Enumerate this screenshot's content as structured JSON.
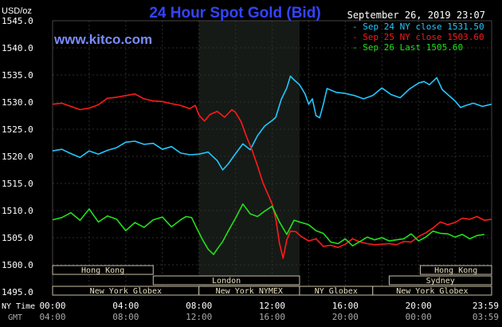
{
  "header": {
    "unit": "USD/oz",
    "title": "24 Hour Spot Gold (Bid)",
    "timestamp": "September 26, 2019 23:07",
    "watermark": "www.kitco.com"
  },
  "colors": {
    "background": "#000000",
    "plot_shade": "#161a16",
    "grid": "#2e2e2e",
    "title": "#3344ff",
    "watermark": "#7a8cff",
    "axis_text": "#ffffff",
    "session_box_fill": "#000000",
    "session_box_stroke": "#c8c0a8",
    "session_box_text": "#e8e0c0",
    "sep24": "#22c8ff",
    "sep25": "#ff1a1a",
    "sep26": "#22e01a"
  },
  "chart_data": {
    "type": "line",
    "title": "24 Hour Spot Gold (Bid)",
    "ylabel": "USD/oz",
    "xlabel_ny": "NY Time",
    "xlabel_gmt": "GMT",
    "ylim": [
      1495,
      1545
    ],
    "yticks": [
      "1495.0",
      "1500.0",
      "1505.0",
      "1510.0",
      "1515.0",
      "1520.0",
      "1525.0",
      "1530.0",
      "1535.0",
      "1540.0",
      "1545.0"
    ],
    "xlim": [
      0,
      24
    ],
    "x_ticks_ny": [
      "00:00",
      "04:00",
      "08:00",
      "12:00",
      "16:00",
      "20:00",
      "23:59"
    ],
    "x_ticks_gmt": [
      "04:00",
      "08:00",
      "12:00",
      "16:00",
      "20:00",
      "00:00",
      "03:59"
    ],
    "shaded_hours": [
      8,
      13.5
    ],
    "legend": [
      {
        "label": "Sep 24 NY close 1531.50",
        "color": "#22c8ff"
      },
      {
        "label": "Sep 25 NY close 1503.60",
        "color": "#ff1a1a"
      },
      {
        "label": "Sep 26 Last 1505.60",
        "color": "#22e01a"
      }
    ],
    "series": [
      {
        "name": "Sep 24",
        "color": "#22c8ff",
        "x": [
          0,
          0.5,
          1,
          1.5,
          2,
          2.5,
          3,
          3.5,
          4,
          4.5,
          5,
          5.5,
          6,
          6.5,
          7,
          7.5,
          8,
          8.5,
          9,
          9.3,
          9.6,
          10,
          10.4,
          10.8,
          11.2,
          11.6,
          12,
          12.2,
          12.5,
          12.8,
          13,
          13.2,
          13.5,
          13.8,
          14,
          14.2,
          14.4,
          14.6,
          14.8,
          15,
          15.5,
          16,
          16.5,
          17,
          17.5,
          18,
          18.5,
          19,
          19.5,
          20,
          20.3,
          20.6,
          21,
          21.3,
          21.6,
          22,
          22.3,
          22.6,
          23,
          23.5,
          23.99
        ],
        "y": [
          1521,
          1521.3,
          1520.5,
          1519.8,
          1521,
          1520.4,
          1521.1,
          1521.6,
          1522.6,
          1522.8,
          1522.2,
          1522.4,
          1521.3,
          1521.8,
          1520.6,
          1520.3,
          1520.4,
          1520.8,
          1519.2,
          1517.5,
          1518.6,
          1520.5,
          1522.3,
          1521.2,
          1523.8,
          1525.6,
          1526.6,
          1527.2,
          1530.5,
          1532.6,
          1534.8,
          1534.1,
          1533.2,
          1531.5,
          1529.6,
          1530.6,
          1527.5,
          1527.1,
          1529.6,
          1532.5,
          1531.8,
          1531.6,
          1531.2,
          1530.6,
          1531.2,
          1532.6,
          1531.4,
          1530.8,
          1532.4,
          1533.5,
          1533.8,
          1533.2,
          1534.5,
          1532.3,
          1531.4,
          1530.2,
          1529,
          1529.4,
          1529.8,
          1529.2,
          1529.6
        ]
      },
      {
        "name": "Sep 25",
        "color": "#ff1a1a",
        "x": [
          0,
          0.5,
          1,
          1.5,
          2,
          2.5,
          3,
          3.5,
          4,
          4.5,
          5,
          5.5,
          6,
          6.5,
          7,
          7.5,
          7.8,
          8,
          8.3,
          8.6,
          9,
          9.4,
          9.8,
          10,
          10.3,
          10.6,
          10.9,
          11.2,
          11.5,
          11.8,
          12,
          12.2,
          12.4,
          12.6,
          12.8,
          13,
          13.3,
          13.6,
          14,
          14.4,
          14.8,
          15.2,
          15.6,
          16,
          16.4,
          16.8,
          17.2,
          17.6,
          18,
          18.4,
          18.8,
          19.2,
          19.6,
          20,
          20.4,
          20.8,
          21.2,
          21.6,
          22,
          22.4,
          22.8,
          23.2,
          23.6,
          23.99
        ],
        "y": [
          1529.6,
          1529.8,
          1529.2,
          1528.6,
          1528.9,
          1529.5,
          1530.7,
          1530.9,
          1531.2,
          1531.5,
          1530.6,
          1530.2,
          1530.1,
          1529.7,
          1529.4,
          1528.8,
          1529.4,
          1527.6,
          1526.5,
          1527.7,
          1528.3,
          1527.2,
          1528.6,
          1528.1,
          1526.4,
          1523.6,
          1521.2,
          1518.3,
          1515.1,
          1512.8,
          1511.2,
          1508.5,
          1504,
          1501.2,
          1504.6,
          1506.2,
          1506.1,
          1505.2,
          1504.4,
          1504.8,
          1503.4,
          1503.6,
          1503.2,
          1503.8,
          1504.8,
          1504.2,
          1503.9,
          1503.7,
          1503.8,
          1503.9,
          1503.7,
          1504.3,
          1504.2,
          1505.2,
          1505.9,
          1506.8,
          1507.9,
          1507.4,
          1507.8,
          1508.6,
          1508.4,
          1508.9,
          1508.2,
          1508.4
        ]
      },
      {
        "name": "Sep 26",
        "color": "#22e01a",
        "x": [
          0,
          0.5,
          1,
          1.5,
          2,
          2.5,
          3,
          3.5,
          4,
          4.5,
          5,
          5.5,
          6,
          6.5,
          7,
          7.3,
          7.6,
          7.9,
          8.2,
          8.5,
          8.8,
          9,
          9.3,
          9.6,
          10,
          10.4,
          10.8,
          11.2,
          11.6,
          12,
          12.4,
          12.8,
          13.2,
          13.6,
          14,
          14.4,
          14.8,
          15.2,
          15.6,
          16,
          16.4,
          16.8,
          17.2,
          17.6,
          18,
          18.4,
          18.8,
          19.2,
          19.6,
          20,
          20.4,
          20.8,
          21.2,
          21.6,
          22,
          22.4,
          22.8,
          23.2,
          23.6
        ],
        "y": [
          1508.3,
          1508.7,
          1509.6,
          1508.2,
          1510.3,
          1507.9,
          1509,
          1508.4,
          1506.3,
          1507.8,
          1506.9,
          1508.3,
          1508.8,
          1507,
          1508.3,
          1508.9,
          1508.7,
          1506.6,
          1504.6,
          1502.9,
          1501.9,
          1502.9,
          1504.3,
          1506.2,
          1508.6,
          1511.2,
          1509.4,
          1508.9,
          1509.9,
          1510.8,
          1507.9,
          1505.6,
          1508.2,
          1507.8,
          1507.4,
          1506.3,
          1505.8,
          1504.2,
          1503.9,
          1504.8,
          1503.5,
          1504.3,
          1505.1,
          1504.6,
          1505,
          1504.4,
          1504.6,
          1504.8,
          1505.7,
          1504.4,
          1505.1,
          1506.2,
          1505.8,
          1505.7,
          1505.1,
          1505.6,
          1504.8,
          1505.4,
          1505.6
        ]
      }
    ],
    "sessions": [
      {
        "label": "Hong Kong",
        "start": 0,
        "end": 5.5,
        "row": 0
      },
      {
        "label": "London",
        "start": 5.5,
        "end": 13.5,
        "row": 1
      },
      {
        "label": "New York Globex",
        "start": 0,
        "end": 8,
        "row": 2
      },
      {
        "label": "New York NYMEX",
        "start": 8,
        "end": 13.5,
        "row": 2
      },
      {
        "label": "NY Globex",
        "start": 13.5,
        "end": 17.5,
        "row": 2
      },
      {
        "label": "Hong Kong",
        "start": 20.1,
        "end": 24,
        "row": 0
      },
      {
        "label": "Sydney",
        "start": 18.4,
        "end": 24,
        "row": 1
      },
      {
        "label": "New York Globex",
        "start": 17.5,
        "end": 24,
        "row": 2
      }
    ],
    "session_ticks": [
      {
        "row": 1,
        "at": 0
      },
      {
        "row": 1,
        "at": 24
      }
    ]
  }
}
